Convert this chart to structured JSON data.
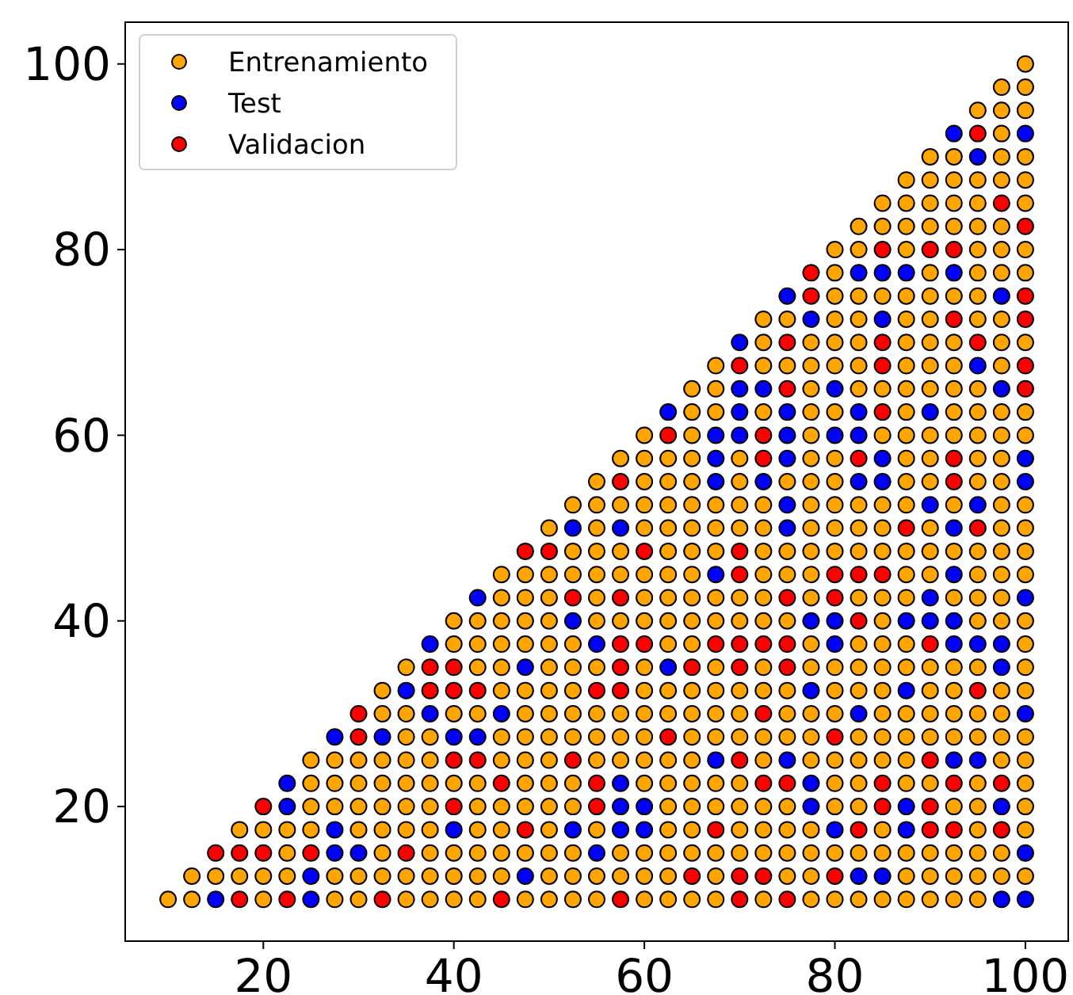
{
  "chart_data": {
    "type": "scatter",
    "xlim": [
      5.5,
      104.5
    ],
    "ylim": [
      5.5,
      104.5
    ],
    "xticks": [
      20,
      40,
      60,
      80,
      100
    ],
    "yticks": [
      20,
      40,
      60,
      80,
      100
    ],
    "grid": false,
    "legend": "top left",
    "marker": "circle",
    "series": [
      {
        "name": "Entrenamiento",
        "color": "#ffa500",
        "x": [
          10,
          12.5,
          20,
          27.5,
          30,
          35,
          37.5,
          40,
          42.5,
          47.5,
          50,
          52.5,
          55,
          60,
          62.5,
          65,
          67.5,
          72.5,
          77.5,
          80,
          82.5,
          85,
          87.5,
          90,
          92.5,
          95,
          12.5,
          15,
          17.5,
          20,
          22.5,
          27.5,
          30,
          32.5,
          35,
          37.5,
          40,
          42.5,
          45,
          50,
          52.5,
          55,
          57.5,
          60,
          62.5,
          67.5,
          75,
          77.5,
          87.5,
          90,
          92.5,
          95,
          97.5,
          100,
          22.5,
          32.5,
          37.5,
          40,
          42.5,
          45,
          47.5,
          50,
          52.5,
          57.5,
          60,
          62.5,
          65,
          67.5,
          70,
          72.5,
          75,
          77.5,
          80,
          82.5,
          85,
          87.5,
          90,
          92.5,
          95,
          97.5,
          17.5,
          20,
          22.5,
          25,
          30,
          32.5,
          35,
          37.5,
          42.5,
          45,
          50,
          55,
          62.5,
          65,
          70,
          72.5,
          75,
          77.5,
          85,
          95,
          100,
          25,
          27.5,
          30,
          32.5,
          35,
          37.5,
          42.5,
          45,
          47.5,
          50,
          52.5,
          62.5,
          65,
          67.5,
          70,
          72.5,
          75,
          80,
          82.5,
          92.5,
          95,
          100,
          25,
          27.5,
          30,
          32.5,
          35,
          37.5,
          40,
          42.5,
          47.5,
          50,
          52.5,
          60,
          62.5,
          65,
          67.5,
          70,
          80,
          82.5,
          87.5,
          90,
          95,
          100,
          25,
          27.5,
          30,
          32.5,
          35,
          37.5,
          45,
          47.5,
          50,
          55,
          57.5,
          60,
          62.5,
          65,
          72.5,
          77.5,
          80,
          82.5,
          85,
          87.5,
          97.5,
          100,
          35,
          37.5,
          45,
          47.5,
          50,
          52.5,
          55,
          57.5,
          60,
          65,
          67.5,
          70,
          72.5,
          75,
          77.5,
          82.5,
          85,
          87.5,
          90,
          92.5,
          95,
          97.5,
          100,
          32.5,
          35,
          40,
          42.5,
          47.5,
          50,
          52.5,
          55,
          57.5,
          60,
          62.5,
          65,
          67.5,
          70,
          75,
          77.5,
          80,
          85,
          87.5,
          90,
          92.5,
          95,
          97.5,
          32.5,
          45,
          47.5,
          50,
          52.5,
          60,
          62.5,
          65,
          67.5,
          70,
          72.5,
          75,
          80,
          82.5,
          85,
          90,
          92.5,
          97.5,
          100,
          35,
          42.5,
          45,
          50,
          52.5,
          55,
          60,
          67.5,
          72.5,
          77.5,
          80,
          82.5,
          85,
          87.5,
          90,
          92.5,
          95,
          100,
          40,
          42.5,
          45,
          47.5,
          50,
          52.5,
          62.5,
          65,
          77.5,
          82.5,
          85,
          87.5,
          100,
          40,
          42.5,
          45,
          47.5,
          50,
          55,
          57.5,
          60,
          62.5,
          65,
          67.5,
          70,
          72.5,
          75,
          85,
          95,
          97.5,
          100,
          45,
          47.5,
          50,
          55,
          60,
          62.5,
          65,
          67.5,
          70,
          72.5,
          77.5,
          82.5,
          85,
          87.5,
          92.5,
          95,
          97.5,
          45,
          47.5,
          50,
          52.5,
          55,
          57.5,
          60,
          62.5,
          65,
          72.5,
          75,
          77.5,
          87.5,
          90,
          95,
          97.5,
          100,
          52.5,
          55,
          57.5,
          62.5,
          65,
          67.5,
          72.5,
          75,
          77.5,
          80,
          82.5,
          85,
          87.5,
          90,
          92.5,
          95,
          97.5,
          100,
          50,
          55,
          60,
          62.5,
          65,
          67.5,
          70,
          72.5,
          77.5,
          80,
          82.5,
          85,
          90,
          97.5,
          100,
          52.5,
          55,
          57.5,
          60,
          62.5,
          65,
          67.5,
          70,
          72.5,
          77.5,
          80,
          82.5,
          85,
          87.5,
          92.5,
          97.5,
          100,
          55,
          60,
          62.5,
          65,
          70,
          75,
          77.5,
          80,
          87.5,
          90,
          95,
          97.5,
          57.5,
          60,
          62.5,
          65,
          70,
          77.5,
          80,
          87.5,
          90,
          95,
          97.5,
          60,
          65,
          77.5,
          85,
          87.5,
          90,
          92.5,
          95,
          97.5,
          100,
          65,
          67.5,
          72.5,
          77.5,
          80,
          87.5,
          92.5,
          95,
          97.5,
          100,
          65,
          67.5,
          77.5,
          82.5,
          85,
          87.5,
          90,
          92.5,
          95,
          67.5,
          72.5,
          75,
          77.5,
          80,
          82.5,
          87.5,
          90,
          92.5,
          97.5,
          72.5,
          77.5,
          80,
          82.5,
          87.5,
          90,
          92.5,
          97.5,
          100,
          72.5,
          75,
          80,
          82.5,
          87.5,
          90,
          95,
          97.5,
          80,
          82.5,
          85,
          87.5,
          90,
          92.5,
          95,
          80,
          90,
          95,
          97.5,
          100,
          80,
          82.5,
          87.5,
          95,
          97.5,
          100,
          82.5,
          85,
          87.5,
          90,
          92.5,
          95,
          97.5,
          85,
          87.5,
          90,
          92.5,
          95,
          100,
          87.5,
          90,
          92.5,
          95,
          97.5,
          100,
          90,
          92.5,
          97.5,
          100,
          97.5,
          95,
          97.5,
          100,
          97.5,
          100,
          100
        ],
        "values": [
          10,
          10,
          10,
          10,
          10,
          10,
          10,
          10,
          10,
          10,
          10,
          10,
          10,
          10,
          10,
          10,
          10,
          10,
          10,
          10,
          10,
          10,
          10,
          10,
          10,
          10,
          12.5,
          12.5,
          12.5,
          12.5,
          12.5,
          12.5,
          12.5,
          12.5,
          12.5,
          12.5,
          12.5,
          12.5,
          12.5,
          12.5,
          12.5,
          12.5,
          12.5,
          12.5,
          12.5,
          12.5,
          12.5,
          12.5,
          12.5,
          12.5,
          12.5,
          12.5,
          12.5,
          12.5,
          15,
          15,
          15,
          15,
          15,
          15,
          15,
          15,
          15,
          15,
          15,
          15,
          15,
          15,
          15,
          15,
          15,
          15,
          15,
          15,
          15,
          15,
          15,
          15,
          15,
          15,
          17.5,
          17.5,
          17.5,
          17.5,
          17.5,
          17.5,
          17.5,
          17.5,
          17.5,
          17.5,
          17.5,
          17.5,
          17.5,
          17.5,
          17.5,
          17.5,
          17.5,
          17.5,
          17.5,
          17.5,
          17.5,
          20,
          20,
          20,
          20,
          20,
          20,
          20,
          20,
          20,
          20,
          20,
          20,
          20,
          20,
          20,
          20,
          20,
          20,
          20,
          20,
          20,
          20,
          22.5,
          22.5,
          22.5,
          22.5,
          22.5,
          22.5,
          22.5,
          22.5,
          22.5,
          22.5,
          22.5,
          22.5,
          22.5,
          22.5,
          22.5,
          22.5,
          22.5,
          22.5,
          22.5,
          22.5,
          22.5,
          22.5,
          25,
          25,
          25,
          25,
          25,
          25,
          25,
          25,
          25,
          25,
          25,
          25,
          25,
          25,
          25,
          25,
          25,
          25,
          25,
          25,
          25,
          25,
          27.5,
          27.5,
          27.5,
          27.5,
          27.5,
          27.5,
          27.5,
          27.5,
          27.5,
          27.5,
          27.5,
          27.5,
          27.5,
          27.5,
          27.5,
          27.5,
          27.5,
          27.5,
          27.5,
          27.5,
          27.5,
          27.5,
          27.5,
          30,
          30,
          30,
          30,
          30,
          30,
          30,
          30,
          30,
          30,
          30,
          30,
          30,
          30,
          30,
          30,
          30,
          30,
          30,
          30,
          30,
          30,
          30,
          32.5,
          32.5,
          32.5,
          32.5,
          32.5,
          32.5,
          32.5,
          32.5,
          32.5,
          32.5,
          32.5,
          32.5,
          32.5,
          32.5,
          32.5,
          32.5,
          32.5,
          32.5,
          32.5,
          35,
          35,
          35,
          35,
          35,
          35,
          35,
          35,
          35,
          35,
          35,
          35,
          35,
          35,
          35,
          35,
          35,
          35,
          37.5,
          37.5,
          37.5,
          37.5,
          37.5,
          37.5,
          37.5,
          37.5,
          37.5,
          37.5,
          37.5,
          37.5,
          37.5,
          40,
          40,
          40,
          40,
          40,
          40,
          40,
          40,
          40,
          40,
          40,
          40,
          40,
          40,
          40,
          40,
          40,
          40,
          42.5,
          42.5,
          42.5,
          42.5,
          42.5,
          42.5,
          42.5,
          42.5,
          42.5,
          42.5,
          42.5,
          42.5,
          42.5,
          42.5,
          42.5,
          42.5,
          42.5,
          45,
          45,
          45,
          45,
          45,
          45,
          45,
          45,
          45,
          45,
          45,
          45,
          45,
          45,
          45,
          45,
          45,
          47.5,
          47.5,
          47.5,
          47.5,
          47.5,
          47.5,
          47.5,
          47.5,
          47.5,
          47.5,
          47.5,
          47.5,
          47.5,
          47.5,
          47.5,
          47.5,
          47.5,
          47.5,
          50,
          50,
          50,
          50,
          50,
          50,
          50,
          50,
          50,
          50,
          50,
          50,
          50,
          50,
          50,
          52.5,
          52.5,
          52.5,
          52.5,
          52.5,
          52.5,
          52.5,
          52.5,
          52.5,
          52.5,
          52.5,
          52.5,
          52.5,
          52.5,
          52.5,
          52.5,
          52.5,
          55,
          55,
          55,
          55,
          55,
          55,
          55,
          55,
          55,
          55,
          55,
          55,
          57.5,
          57.5,
          57.5,
          57.5,
          57.5,
          57.5,
          57.5,
          57.5,
          57.5,
          57.5,
          57.5,
          60,
          60,
          60,
          60,
          60,
          60,
          60,
          60,
          60,
          60,
          62.5,
          62.5,
          62.5,
          62.5,
          62.5,
          62.5,
          62.5,
          62.5,
          62.5,
          62.5,
          65,
          65,
          65,
          65,
          65,
          65,
          65,
          65,
          65,
          67.5,
          67.5,
          67.5,
          67.5,
          67.5,
          67.5,
          67.5,
          67.5,
          67.5,
          67.5,
          70,
          70,
          70,
          70,
          70,
          70,
          70,
          70,
          70,
          72.5,
          72.5,
          72.5,
          72.5,
          72.5,
          72.5,
          72.5,
          72.5,
          75,
          75,
          75,
          75,
          75,
          75,
          75,
          77.5,
          77.5,
          77.5,
          77.5,
          77.5,
          80,
          80,
          80,
          80,
          80,
          80,
          82.5,
          82.5,
          82.5,
          82.5,
          82.5,
          82.5,
          82.5,
          85,
          85,
          85,
          85,
          85,
          85,
          87.5,
          87.5,
          87.5,
          87.5,
          87.5,
          87.5,
          90,
          90,
          90,
          90,
          92.5,
          95,
          95,
          95,
          97.5,
          97.5,
          100
        ]
      },
      {
        "name": "Test",
        "color": "#0000ff",
        "x": [
          15,
          25,
          97.5,
          100,
          25,
          47.5,
          82.5,
          85,
          27.5,
          30,
          55,
          100,
          27.5,
          40,
          52.5,
          57.5,
          60,
          80,
          87.5,
          22.5,
          57.5,
          60,
          77.5,
          87.5,
          97.5,
          22.5,
          57.5,
          77.5,
          67.5,
          75,
          92.5,
          95,
          27.5,
          32.5,
          40,
          42.5,
          37.5,
          45,
          82.5,
          100,
          35,
          77.5,
          87.5,
          47.5,
          62.5,
          97.5,
          37.5,
          55,
          80,
          92.5,
          95,
          97.5,
          52.5,
          77.5,
          80,
          87.5,
          90,
          92.5,
          42.5,
          90,
          100,
          67.5,
          92.5,
          52.5,
          57.5,
          75,
          92.5,
          75,
          90,
          95,
          67.5,
          72.5,
          82.5,
          85,
          100,
          67.5,
          75,
          85,
          100,
          67.5,
          70,
          75,
          80,
          82.5,
          62.5,
          70,
          75,
          82.5,
          90,
          70,
          72.5,
          80,
          97.5,
          95,
          70,
          77.5,
          85,
          75,
          97.5,
          82.5,
          85,
          87.5,
          92.5,
          95,
          92.5,
          100
        ],
        "values": [
          10,
          10,
          10,
          10,
          12.5,
          12.5,
          12.5,
          12.5,
          15,
          15,
          15,
          15,
          17.5,
          17.5,
          17.5,
          17.5,
          17.5,
          17.5,
          17.5,
          20,
          20,
          20,
          20,
          20,
          20,
          22.5,
          22.5,
          22.5,
          25,
          25,
          25,
          25,
          27.5,
          27.5,
          27.5,
          27.5,
          30,
          30,
          30,
          30,
          32.5,
          32.5,
          32.5,
          35,
          35,
          35,
          37.5,
          37.5,
          37.5,
          37.5,
          37.5,
          37.5,
          40,
          40,
          40,
          40,
          40,
          40,
          42.5,
          42.5,
          42.5,
          45,
          45,
          50,
          50,
          50,
          50,
          52.5,
          52.5,
          52.5,
          55,
          55,
          55,
          55,
          55,
          57.5,
          57.5,
          57.5,
          57.5,
          60,
          60,
          60,
          60,
          60,
          62.5,
          62.5,
          62.5,
          62.5,
          62.5,
          65,
          65,
          65,
          65,
          67.5,
          70,
          72.5,
          72.5,
          75,
          75,
          77.5,
          77.5,
          77.5,
          77.5,
          90,
          92.5,
          92.5
        ]
      },
      {
        "name": "Validacion",
        "color": "#ff0000",
        "x": [
          17.5,
          22.5,
          32.5,
          45,
          57.5,
          70,
          75,
          65,
          70,
          72.5,
          80,
          15,
          17.5,
          20,
          25,
          35,
          47.5,
          67.5,
          82.5,
          90,
          92.5,
          97.5,
          20,
          40,
          55,
          85,
          90,
          45,
          55,
          72.5,
          75,
          85,
          92.5,
          97.5,
          40,
          42.5,
          52.5,
          70,
          90,
          30,
          62.5,
          80,
          30,
          72.5,
          37.5,
          40,
          42.5,
          55,
          57.5,
          95,
          37.5,
          40,
          57.5,
          65,
          70,
          75,
          57.5,
          60,
          67.5,
          70,
          72.5,
          75,
          90,
          82.5,
          52.5,
          57.5,
          75,
          80,
          70,
          80,
          82.5,
          85,
          47.5,
          50,
          60,
          70,
          87.5,
          95,
          57.5,
          92.5,
          72.5,
          82.5,
          92.5,
          62.5,
          72.5,
          85,
          75,
          100,
          70,
          85,
          100,
          75,
          85,
          95,
          92.5,
          100,
          77.5,
          100,
          77.5,
          85,
          90,
          92.5,
          100,
          97.5,
          95
        ],
        "values": [
          10,
          10,
          10,
          10,
          10,
          10,
          10,
          12.5,
          12.5,
          12.5,
          12.5,
          15,
          15,
          15,
          15,
          15,
          17.5,
          17.5,
          17.5,
          17.5,
          17.5,
          17.5,
          20,
          20,
          20,
          20,
          20,
          22.5,
          22.5,
          22.5,
          22.5,
          22.5,
          22.5,
          22.5,
          25,
          25,
          25,
          25,
          25,
          27.5,
          27.5,
          27.5,
          30,
          30,
          32.5,
          32.5,
          32.5,
          32.5,
          32.5,
          32.5,
          35,
          35,
          35,
          35,
          35,
          35,
          37.5,
          37.5,
          37.5,
          37.5,
          37.5,
          37.5,
          37.5,
          40,
          42.5,
          42.5,
          42.5,
          42.5,
          45,
          45,
          45,
          45,
          47.5,
          47.5,
          47.5,
          47.5,
          50,
          50,
          55,
          55,
          57.5,
          57.5,
          57.5,
          60,
          60,
          62.5,
          65,
          65,
          67.5,
          67.5,
          67.5,
          70,
          70,
          70,
          72.5,
          72.5,
          75,
          75,
          77.5,
          80,
          80,
          80,
          82.5,
          85,
          92.5
        ]
      }
    ]
  }
}
